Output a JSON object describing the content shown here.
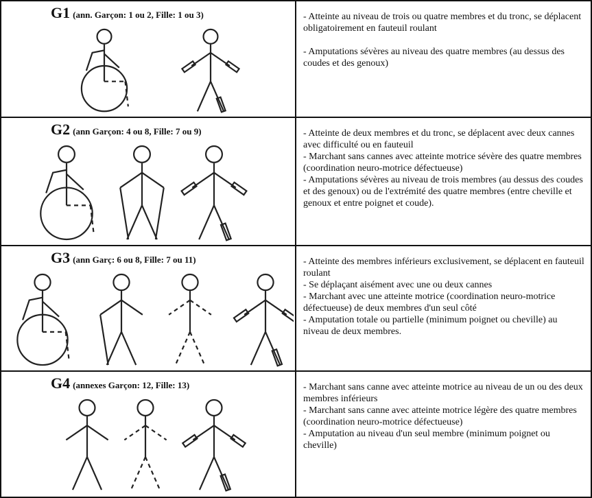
{
  "rows": [
    {
      "group": "G1",
      "note": "(ann. Garçon: 1 ou 2, Fille: 1 ou 3)",
      "items": [
        "- Atteinte au niveau de trois ou quatre membres et du tronc, se déplacent obligatoirement en fauteuil roulant",
        "- Amputations sévères au niveau des quatre membres (au dessus des coudes et des genoux)"
      ]
    },
    {
      "group": "G2",
      "note": "(ann Garçon: 4 ou 8, Fille: 7 ou 9)",
      "items": [
        "- Atteinte de deux membres et du tronc, se déplacent avec deux cannes avec difficulté ou en fauteuil",
        "- Marchant sans cannes avec atteinte motrice sévère des quatre membres (coordination neuro-motrice défectueuse)",
        "- Amputations sévères au niveau de trois membres (au dessus des coudes et des genoux) ou de l'extrémité des quatre membres (entre cheville et genoux et entre poignet et coude)."
      ]
    },
    {
      "group": "G3",
      "note": "(ann Garç: 6 ou 8, Fille: 7 ou 11)",
      "items": [
        "- Atteinte des membres inférieurs exclusivement, se déplacent en fauteuil roulant",
        "- Se déplaçant aisément avec une ou deux cannes",
        "- Marchant avec une atteinte motrice (coordination neuro-motrice défectueuse) de deux membres d'un seul côté",
        "- Amputation totale ou partielle (minimum poignet ou cheville) au niveau de deux membres."
      ]
    },
    {
      "group": "G4",
      "note": "(annexes Garçon: 12, Fille: 13)",
      "items": [
        "- Marchant sans canne avec atteinte motrice au niveau de un ou des deux membres inférieurs",
        "- Marchant sans canne avec atteinte motrice légère des quatre membres (coordination neuro-motrice défectueuse)",
        "- Amputation au niveau d'un seul membre (minimum poignet ou cheville)"
      ]
    }
  ]
}
